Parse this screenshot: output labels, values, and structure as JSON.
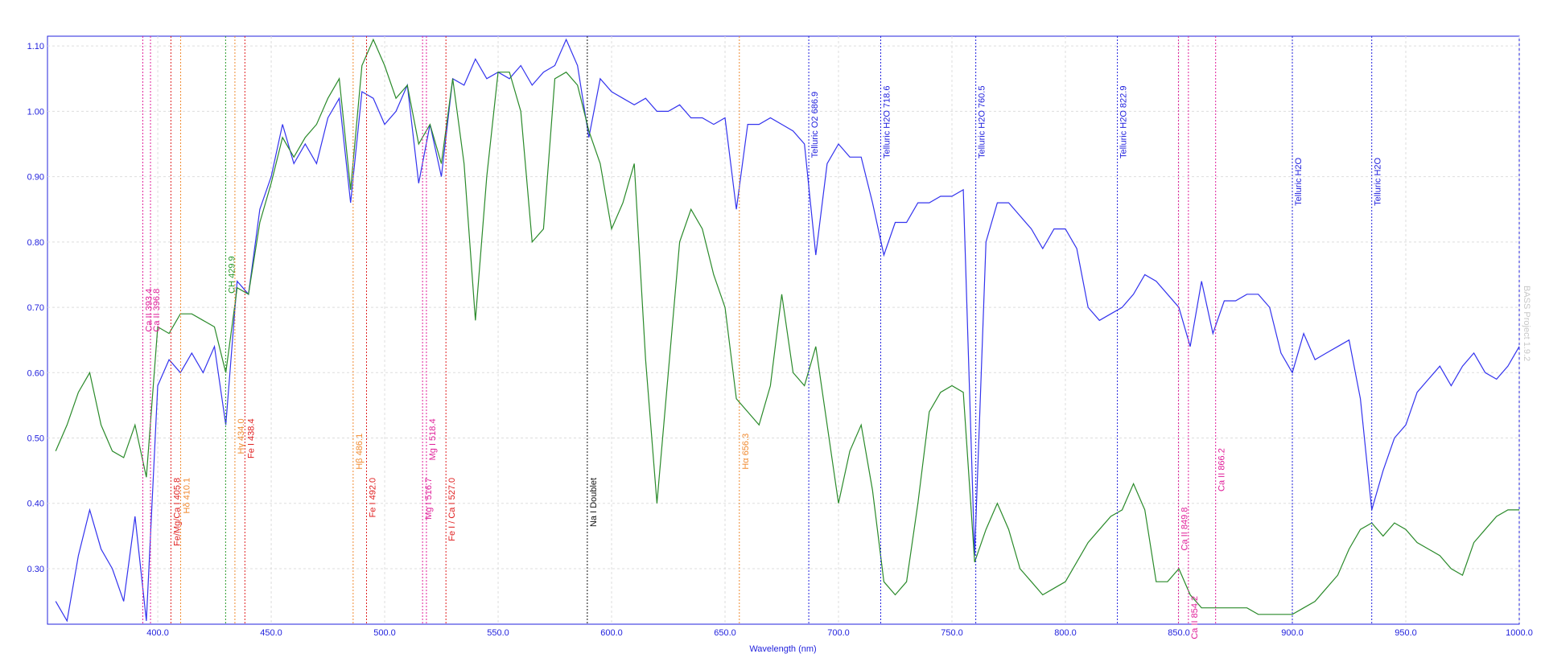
{
  "chart_data": {
    "type": "line",
    "x_label": "Wavelength (nm)",
    "side_note": "BASS Project 1.9.2",
    "xlim": [
      351.4,
      1000
    ],
    "ylim": [
      0.215,
      1.115
    ],
    "xticks": [
      {
        "value": 400,
        "label": "400.0"
      },
      {
        "value": 450,
        "label": "450.0"
      },
      {
        "value": 500,
        "label": "500.0"
      },
      {
        "value": 550,
        "label": "550.0"
      },
      {
        "value": 600,
        "label": "600.0"
      },
      {
        "value": 650,
        "label": "650.0"
      },
      {
        "value": 700,
        "label": "700.0"
      },
      {
        "value": 750,
        "label": "750.0"
      },
      {
        "value": 800,
        "label": "800.0"
      },
      {
        "value": 850,
        "label": "850.0"
      },
      {
        "value": 900,
        "label": "900.0"
      },
      {
        "value": 950,
        "label": "950.0"
      },
      {
        "value": 1000,
        "label": "1000.0"
      }
    ],
    "yticks": [
      {
        "value": 0.3,
        "label": "0.30"
      },
      {
        "value": 0.4,
        "label": "0.40"
      },
      {
        "value": 0.5,
        "label": "0.50"
      },
      {
        "value": 0.6,
        "label": "0.60"
      },
      {
        "value": 0.7,
        "label": "0.70"
      },
      {
        "value": 0.8,
        "label": "0.80"
      },
      {
        "value": 0.9,
        "label": "0.90"
      },
      {
        "value": 1.0,
        "label": "1.00"
      },
      {
        "value": 1.1,
        "label": "1.10"
      }
    ],
    "grid": true,
    "x": [
      355,
      360,
      365,
      370,
      375,
      380,
      385,
      390,
      395,
      400,
      405,
      410,
      415,
      420,
      425,
      430,
      435,
      440,
      445,
      450,
      455,
      460,
      465,
      470,
      475,
      480,
      485,
      490,
      495,
      500,
      505,
      510,
      515,
      520,
      525,
      530,
      535,
      540,
      545,
      550,
      555,
      560,
      565,
      570,
      575,
      580,
      585,
      590,
      595,
      600,
      605,
      610,
      615,
      620,
      625,
      630,
      635,
      640,
      645,
      650,
      655,
      660,
      665,
      670,
      675,
      680,
      685,
      690,
      695,
      700,
      705,
      710,
      715,
      720,
      725,
      730,
      735,
      740,
      745,
      750,
      755,
      760,
      765,
      770,
      775,
      780,
      785,
      790,
      795,
      800,
      805,
      810,
      815,
      820,
      825,
      830,
      835,
      840,
      845,
      850,
      855,
      860,
      865,
      870,
      875,
      880,
      885,
      890,
      895,
      900,
      905,
      910,
      915,
      920,
      925,
      930,
      935,
      940,
      945,
      950,
      955,
      960,
      965,
      970,
      975,
      980,
      985,
      990,
      995,
      1000
    ],
    "series": [
      {
        "color": "#3333ee",
        "values": [
          0.25,
          0.22,
          0.32,
          0.39,
          0.33,
          0.3,
          0.25,
          0.38,
          0.22,
          0.58,
          0.62,
          0.6,
          0.63,
          0.6,
          0.64,
          0.52,
          0.74,
          0.72,
          0.85,
          0.9,
          0.98,
          0.92,
          0.95,
          0.92,
          0.99,
          1.02,
          0.86,
          1.03,
          1.02,
          0.98,
          1.0,
          1.04,
          0.89,
          0.98,
          0.9,
          1.05,
          1.04,
          1.08,
          1.05,
          1.06,
          1.05,
          1.07,
          1.04,
          1.06,
          1.07,
          1.11,
          1.07,
          0.96,
          1.05,
          1.03,
          1.02,
          1.01,
          1.02,
          1.0,
          1.0,
          1.01,
          0.99,
          0.99,
          0.98,
          0.99,
          0.85,
          0.98,
          0.98,
          0.99,
          0.98,
          0.97,
          0.95,
          0.78,
          0.92,
          0.95,
          0.93,
          0.93,
          0.86,
          0.78,
          0.83,
          0.83,
          0.86,
          0.86,
          0.87,
          0.87,
          0.88,
          0.32,
          0.8,
          0.86,
          0.86,
          0.84,
          0.82,
          0.79,
          0.82,
          0.82,
          0.79,
          0.7,
          0.68,
          0.69,
          0.7,
          0.72,
          0.75,
          0.74,
          0.72,
          0.7,
          0.64,
          0.74,
          0.66,
          0.71,
          0.71,
          0.72,
          0.72,
          0.7,
          0.63,
          0.6,
          0.66,
          0.62,
          0.63,
          0.64,
          0.65,
          0.56,
          0.39,
          0.45,
          0.5,
          0.52,
          0.57,
          0.59,
          0.61,
          0.58,
          0.61,
          0.63,
          0.6,
          0.59,
          0.61,
          0.64
        ]
      },
      {
        "color": "#2a8a2a",
        "values": [
          0.48,
          0.52,
          0.57,
          0.6,
          0.52,
          0.48,
          0.47,
          0.52,
          0.44,
          0.67,
          0.66,
          0.69,
          0.69,
          0.68,
          0.67,
          0.6,
          0.73,
          0.72,
          0.83,
          0.89,
          0.96,
          0.93,
          0.96,
          0.98,
          1.02,
          1.05,
          0.88,
          1.07,
          1.11,
          1.07,
          1.02,
          1.04,
          0.95,
          0.98,
          0.92,
          1.05,
          0.92,
          0.68,
          0.9,
          1.06,
          1.06,
          1.0,
          0.8,
          0.82,
          1.05,
          1.06,
          1.04,
          0.97,
          0.92,
          0.82,
          0.86,
          0.92,
          0.62,
          0.4,
          0.6,
          0.8,
          0.85,
          0.82,
          0.75,
          0.7,
          0.56,
          0.54,
          0.52,
          0.58,
          0.72,
          0.6,
          0.58,
          0.64,
          0.52,
          0.4,
          0.48,
          0.52,
          0.42,
          0.28,
          0.26,
          0.28,
          0.4,
          0.54,
          0.57,
          0.58,
          0.57,
          0.31,
          0.36,
          0.4,
          0.36,
          0.3,
          0.28,
          0.26,
          0.27,
          0.28,
          0.31,
          0.34,
          0.36,
          0.38,
          0.39,
          0.43,
          0.39,
          0.28,
          0.28,
          0.3,
          0.26,
          0.24,
          0.24,
          0.24,
          0.24,
          0.24,
          0.23,
          0.23,
          0.23,
          0.23,
          0.24,
          0.25,
          0.27,
          0.29,
          0.33,
          0.36,
          0.37,
          0.35,
          0.37,
          0.36,
          0.34,
          0.33,
          0.32,
          0.3,
          0.29,
          0.34,
          0.36,
          0.38,
          0.39,
          0.39
        ]
      }
    ],
    "annotations": [
      {
        "label": "Ca II 393.4",
        "x": 393.4,
        "color": "#e0209a"
      },
      {
        "label": "Ca II 396.8",
        "x": 396.8,
        "color": "#e0209a"
      },
      {
        "label": "Fe/Mg/Ca I 405.8",
        "x": 405.8,
        "color": "#e02020"
      },
      {
        "label": "Hδ 410.1",
        "x": 410.1,
        "color": "#f08a30"
      },
      {
        "label": "CH 429.9",
        "x": 429.9,
        "color": "#2a9a2a"
      },
      {
        "label": "Hγ 434.0",
        "x": 434.0,
        "color": "#f08a30"
      },
      {
        "label": "Fe I 438.4",
        "x": 438.4,
        "color": "#e02020"
      },
      {
        "label": "Hβ 486.1",
        "x": 486.1,
        "color": "#f08a30"
      },
      {
        "label": "Fe I 492.0",
        "x": 492.0,
        "color": "#e02020"
      },
      {
        "label": "Mg I 516.7",
        "x": 516.7,
        "color": "#e0209a"
      },
      {
        "label": "Mg I 518.4",
        "x": 518.4,
        "color": "#e0209a"
      },
      {
        "label": "Fe I / Ca I 527.0",
        "x": 527.0,
        "color": "#e02020"
      },
      {
        "label": "Na I Doublet",
        "x": 589.3,
        "color": "#111111"
      },
      {
        "label": "Hα 656.3",
        "x": 656.3,
        "color": "#f08a30"
      },
      {
        "label": "Telluric O2 686.9",
        "x": 686.9,
        "color": "#2222dd"
      },
      {
        "label": "Telluric H2O 718.6",
        "x": 718.6,
        "color": "#2222dd"
      },
      {
        "label": "Telluric H2O 760.5",
        "x": 760.5,
        "color": "#2222dd"
      },
      {
        "label": "Telluric H2O 822.9",
        "x": 822.9,
        "color": "#2222dd"
      },
      {
        "label": "Ca II 849.8",
        "x": 849.8,
        "color": "#e0209a"
      },
      {
        "label": "Ca II 854.2",
        "x": 854.2,
        "color": "#e0209a"
      },
      {
        "label": "Ca II 866.2",
        "x": 866.2,
        "color": "#e0209a"
      },
      {
        "label": "Telluric H2O",
        "x": 900.0,
        "color": "#2222dd"
      },
      {
        "label": "Telluric H2O",
        "x": 935.0,
        "color": "#2222dd"
      }
    ]
  }
}
